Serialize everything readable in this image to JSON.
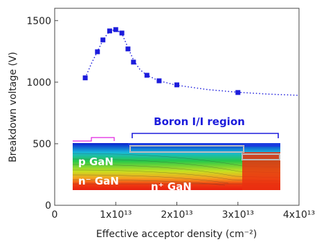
{
  "chart_data": {
    "type": "scatter",
    "xlabel": "Effective acceptor density (cm⁻²)",
    "ylabel": "Breakdown voltage (V)",
    "x": [
      5000000000000.0,
      7000000000000.0,
      7900000000000.0,
      9000000000000.0,
      10000000000000.0,
      11000000000000.0,
      12000000000000.0,
      12900000000000.0,
      15100000000000.0,
      17100000000000.0,
      20000000000000.0,
      30000000000000.0
    ],
    "values": [
      1035,
      1247,
      1343,
      1416,
      1427,
      1399,
      1270,
      1163,
      1056,
      1011,
      978,
      916
    ],
    "color": "#1c1cdc",
    "curve": {
      "x": [
        5000000000000.0,
        6000000000000.0,
        7000000000000.0,
        8000000000000.0,
        9000000000000.0,
        10000000000000.0,
        11000000000000.0,
        12000000000000.0,
        13000000000000.0,
        14000000000000.0,
        15000000000000.0,
        17000000000000.0,
        20000000000000.0,
        25000000000000.0,
        30000000000000.0,
        35000000000000.0,
        40000000000000.0
      ],
      "values": [
        1035,
        1150,
        1250,
        1350,
        1415,
        1427,
        1395,
        1280,
        1170,
        1100,
        1060,
        1012,
        975,
        940,
        918,
        903,
        893
      ]
    },
    "xlim": [
      0,
      40000000000000.0
    ],
    "xticks": [
      0,
      {
        "value": 10000000000000.0,
        "label": "1x10¹³"
      },
      {
        "value": 20000000000000.0,
        "label": "2x10¹³"
      },
      {
        "value": 30000000000000.0,
        "label": "3x10¹³"
      },
      {
        "value": 40000000000000.0,
        "label": "4x10¹³"
      }
    ],
    "ylim": [
      0,
      1600
    ],
    "yticks": [
      0,
      500,
      1000,
      1500
    ],
    "annotations": [
      "Boron I/I region",
      "p GaN",
      "n⁻ GaN",
      "n⁺ GaN"
    ]
  }
}
